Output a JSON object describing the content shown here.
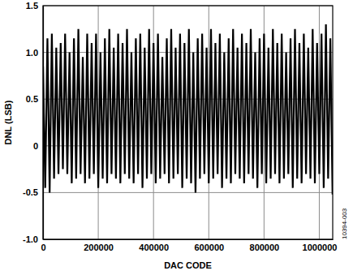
{
  "chart_data": {
    "type": "line",
    "x_label": "DAC CODE",
    "y_label": "DNL (LSB)",
    "annotations": [
      "10394-003"
    ],
    "x": [
      0,
      8000,
      16000,
      24000,
      32000,
      40000,
      48000,
      56000,
      64000,
      72000,
      80000,
      88000,
      96000,
      104000,
      112000,
      120000,
      128000,
      136000,
      144000,
      152000,
      160000,
      168000,
      176000,
      184000,
      192000,
      200000,
      208000,
      216000,
      224000,
      232000,
      240000,
      248000,
      256000,
      264000,
      272000,
      280000,
      288000,
      296000,
      304000,
      312000,
      320000,
      328000,
      336000,
      344000,
      352000,
      360000,
      368000,
      376000,
      384000,
      392000,
      400000,
      408000,
      416000,
      424000,
      432000,
      440000,
      448000,
      456000,
      464000,
      472000,
      480000,
      488000,
      496000,
      504000,
      512000,
      520000,
      528000,
      536000,
      544000,
      552000,
      560000,
      568000,
      576000,
      584000,
      592000,
      600000,
      608000,
      616000,
      624000,
      632000,
      640000,
      648000,
      656000,
      664000,
      672000,
      680000,
      688000,
      696000,
      704000,
      712000,
      720000,
      728000,
      736000,
      744000,
      752000,
      760000,
      768000,
      776000,
      784000,
      792000,
      800000,
      808000,
      816000,
      824000,
      832000,
      840000,
      848000,
      856000,
      864000,
      872000,
      880000,
      888000,
      896000,
      904000,
      912000,
      920000,
      928000,
      936000,
      944000,
      952000,
      960000,
      968000,
      976000,
      984000,
      992000,
      1000000,
      1008000,
      1016000,
      1024000,
      1032000,
      1040000,
      1048000
    ],
    "values": [
      0.85,
      -0.45,
      1.15,
      -0.5,
      1.2,
      -0.35,
      1.05,
      -0.3,
      1.1,
      -0.25,
      1.2,
      -0.3,
      1.0,
      -0.4,
      1.15,
      -0.35,
      1.25,
      -0.3,
      0.95,
      -0.4,
      1.2,
      -0.35,
      1.1,
      -0.3,
      1.2,
      -0.45,
      1.0,
      -0.35,
      1.15,
      -0.4,
      1.25,
      -0.3,
      1.05,
      -0.35,
      1.2,
      -0.4,
      1.1,
      -0.3,
      1.25,
      -0.35,
      1.0,
      -0.4,
      1.15,
      -0.3,
      1.2,
      -0.45,
      1.05,
      -0.35,
      1.25,
      -0.3,
      1.1,
      -0.4,
      1.2,
      -0.35,
      0.95,
      -0.3,
      1.15,
      -0.4,
      1.25,
      -0.35,
      1.05,
      -0.3,
      1.2,
      -0.45,
      1.1,
      -0.35,
      1.25,
      -0.4,
      1.0,
      -0.5,
      1.15,
      -0.35,
      1.2,
      -0.3,
      1.05,
      -0.4,
      1.25,
      -0.35,
      1.1,
      -0.3,
      1.2,
      -0.45,
      1.0,
      -0.35,
      1.15,
      -0.4,
      1.25,
      -0.3,
      1.05,
      -0.35,
      1.2,
      -0.4,
      1.1,
      -0.3,
      1.25,
      -0.35,
      1.0,
      -0.45,
      1.15,
      -0.3,
      1.2,
      -0.4,
      1.05,
      -0.35,
      1.25,
      -0.3,
      1.1,
      -0.4,
      1.2,
      -0.35,
      1.0,
      -0.3,
      1.15,
      -0.45,
      1.25,
      -0.35,
      1.1,
      -0.4,
      1.2,
      -0.3,
      1.05,
      -0.35,
      1.25,
      -0.4,
      1.1,
      -0.3,
      1.2,
      -0.45,
      1.3,
      -0.35,
      1.15,
      -0.52
    ],
    "color": "#000000",
    "xlim": [
      0,
      1048575
    ],
    "xticks": [
      0,
      200000,
      400000,
      600000,
      800000,
      1000000
    ],
    "ylim": [
      -1,
      1.5
    ],
    "yticks": [
      {
        "value": -1,
        "label": "-1.0"
      },
      -0.5,
      0,
      0.5,
      {
        "value": 1,
        "label": "1.0"
      },
      {
        "value": 1.5,
        "label": "1.5"
      }
    ],
    "grid": true
  }
}
